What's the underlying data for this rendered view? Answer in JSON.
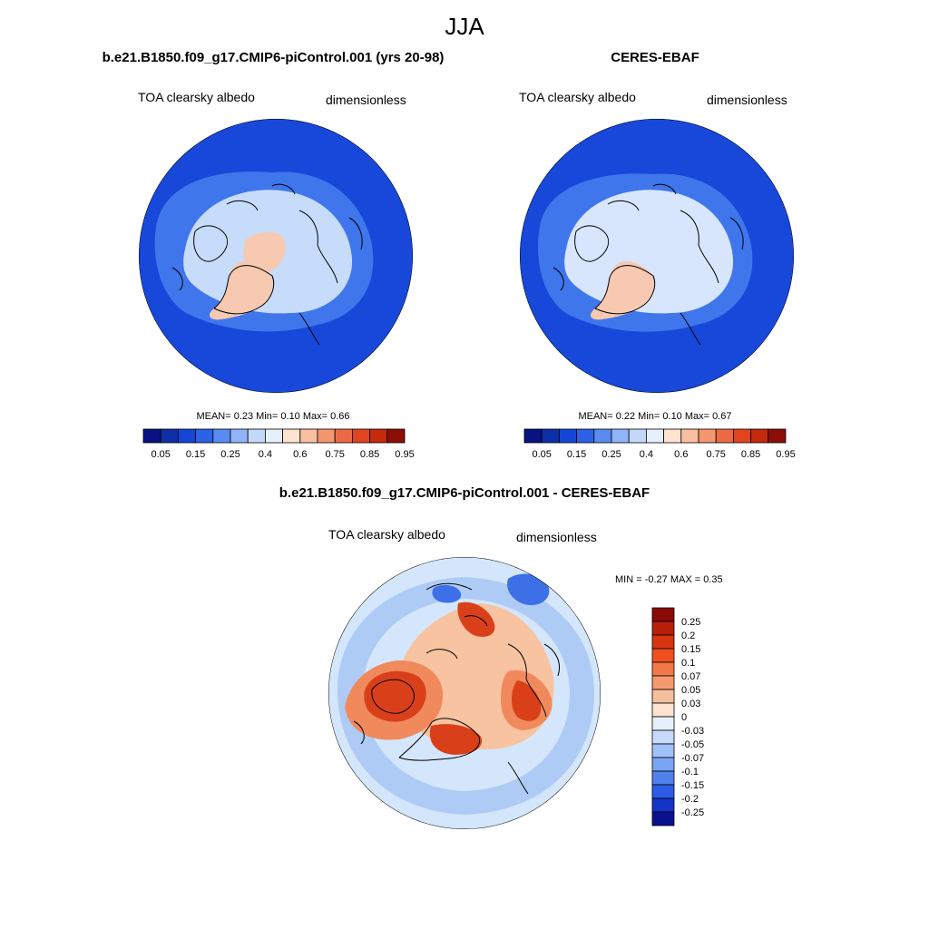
{
  "figure": {
    "season": "JJA"
  },
  "panels": [
    {
      "title": "b.e21.B1850.f09_g17.CMIP6-piControl.001 (yrs 20-98)",
      "variable": "TOA clearsky albedo",
      "units": "dimensionless",
      "stats": "MEAN=   0.23  Min=   0.10  Max=   0.66",
      "colorbar": {
        "labels": [
          "0.05",
          "0.15",
          "0.25",
          "0.4",
          "0.6",
          "0.75",
          "0.85",
          "0.95"
        ],
        "colors": [
          "#0a1180",
          "#0d2fa8",
          "#1446d6",
          "#2d62e8",
          "#5a8af2",
          "#8fb4f7",
          "#c3d9fb",
          "#e6f0fd",
          "#fde3d0",
          "#f9bfa0",
          "#f49670",
          "#ec6a45",
          "#e0451f",
          "#c42a0c",
          "#8d0e06"
        ]
      },
      "map_colors": {
        "ocean": "#1848d9",
        "mid": "#3f76ec",
        "arctic": "#c7dcfb",
        "ice": "#f6c9b0"
      }
    },
    {
      "title": "CERES-EBAF",
      "variable": "TOA clearsky albedo",
      "units": "dimensionless",
      "stats": "MEAN=   0.22  Min=   0.10  Max=   0.67",
      "colorbar": {
        "labels": [
          "0.05",
          "0.15",
          "0.25",
          "0.4",
          "0.6",
          "0.75",
          "0.85",
          "0.95"
        ],
        "colors": [
          "#0a1180",
          "#0d2fa8",
          "#1446d6",
          "#2d62e8",
          "#5a8af2",
          "#8fb4f7",
          "#c3d9fb",
          "#e6f0fd",
          "#fde3d0",
          "#f9bfa0",
          "#f49670",
          "#ec6a45",
          "#e0451f",
          "#c42a0c",
          "#8d0e06"
        ]
      },
      "map_colors": {
        "ocean": "#1848d9",
        "mid": "#3f76ec",
        "arctic": "#d7e6fd",
        "ice": "#f6c9b0"
      }
    },
    {
      "title": "b.e21.B1850.f09_g17.CMIP6-piControl.001 - CERES-EBAF",
      "variable": "TOA clearsky albedo",
      "units": "dimensionless",
      "stats": "MIN =  -0.27 MAX =   0.35",
      "colorbar": {
        "labels": [
          "0.25",
          "0.2",
          "0.15",
          "0.1",
          "0.07",
          "0.05",
          "0.03",
          "0",
          "-0.03",
          "-0.05",
          "-0.07",
          "-0.1",
          "-0.15",
          "-0.2",
          "-0.25"
        ],
        "colors": [
          "#8a0a06",
          "#b8200b",
          "#d93410",
          "#f05020",
          "#f2784a",
          "#f59a70",
          "#f8bf9c",
          "#fbe3d0",
          "#e6f0fd",
          "#c6dbfb",
          "#9fc1f7",
          "#7aa5f2",
          "#4f80ec",
          "#2c5ce6",
          "#1434c8",
          "#0a1190"
        ]
      },
      "map_colors": {
        "ocean": "#d4e6fb",
        "ring": "#aecbf6",
        "pos1": "#f7c3a0",
        "pos2": "#f08a5c",
        "pos3": "#d9401a",
        "neg": "#3d6fe6"
      }
    }
  ]
}
